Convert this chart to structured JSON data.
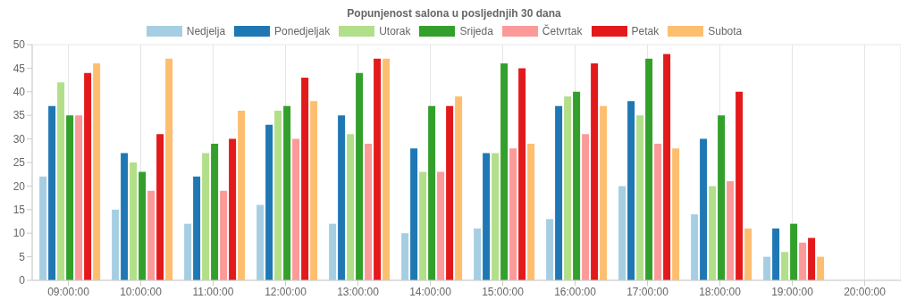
{
  "chart_data": {
    "type": "bar",
    "title": "Popunjenost salona u posljednjih 30 dana",
    "categories": [
      "09:00:00",
      "10:00:00",
      "11:00:00",
      "12:00:00",
      "13:00:00",
      "14:00:00",
      "15:00:00",
      "16:00:00",
      "17:00:00",
      "18:00:00",
      "19:00:00",
      "20:00:00"
    ],
    "series": [
      {
        "name": "Nedjelja",
        "color": "#a6cee3",
        "values": [
          22,
          15,
          12,
          16,
          12,
          10,
          11,
          13,
          20,
          14,
          5,
          0
        ]
      },
      {
        "name": "Ponedjeljak",
        "color": "#1f78b4",
        "values": [
          37,
          27,
          22,
          33,
          35,
          28,
          27,
          37,
          38,
          30,
          11,
          0
        ]
      },
      {
        "name": "Utorak",
        "color": "#b2df8a",
        "values": [
          42,
          25,
          27,
          36,
          31,
          23,
          27,
          39,
          35,
          20,
          6,
          0
        ]
      },
      {
        "name": "Srijeda",
        "color": "#33a02c",
        "values": [
          35,
          23,
          29,
          37,
          44,
          37,
          46,
          40,
          47,
          35,
          12,
          0
        ]
      },
      {
        "name": "Četvrtak",
        "color": "#fb9a99",
        "values": [
          35,
          19,
          19,
          30,
          29,
          23,
          28,
          31,
          29,
          21,
          8,
          0
        ]
      },
      {
        "name": "Petak",
        "color": "#e31a1c",
        "values": [
          44,
          31,
          30,
          43,
          47,
          37,
          45,
          46,
          48,
          40,
          9,
          0
        ]
      },
      {
        "name": "Subota",
        "color": "#fdbf6f",
        "values": [
          46,
          47,
          36,
          38,
          47,
          39,
          29,
          37,
          28,
          11,
          5,
          0
        ]
      }
    ],
    "ylim": [
      0,
      50
    ],
    "yticks": [
      0,
      5,
      10,
      15,
      20,
      25,
      30,
      35,
      40,
      45,
      50
    ],
    "grid": true,
    "legend": "top"
  }
}
